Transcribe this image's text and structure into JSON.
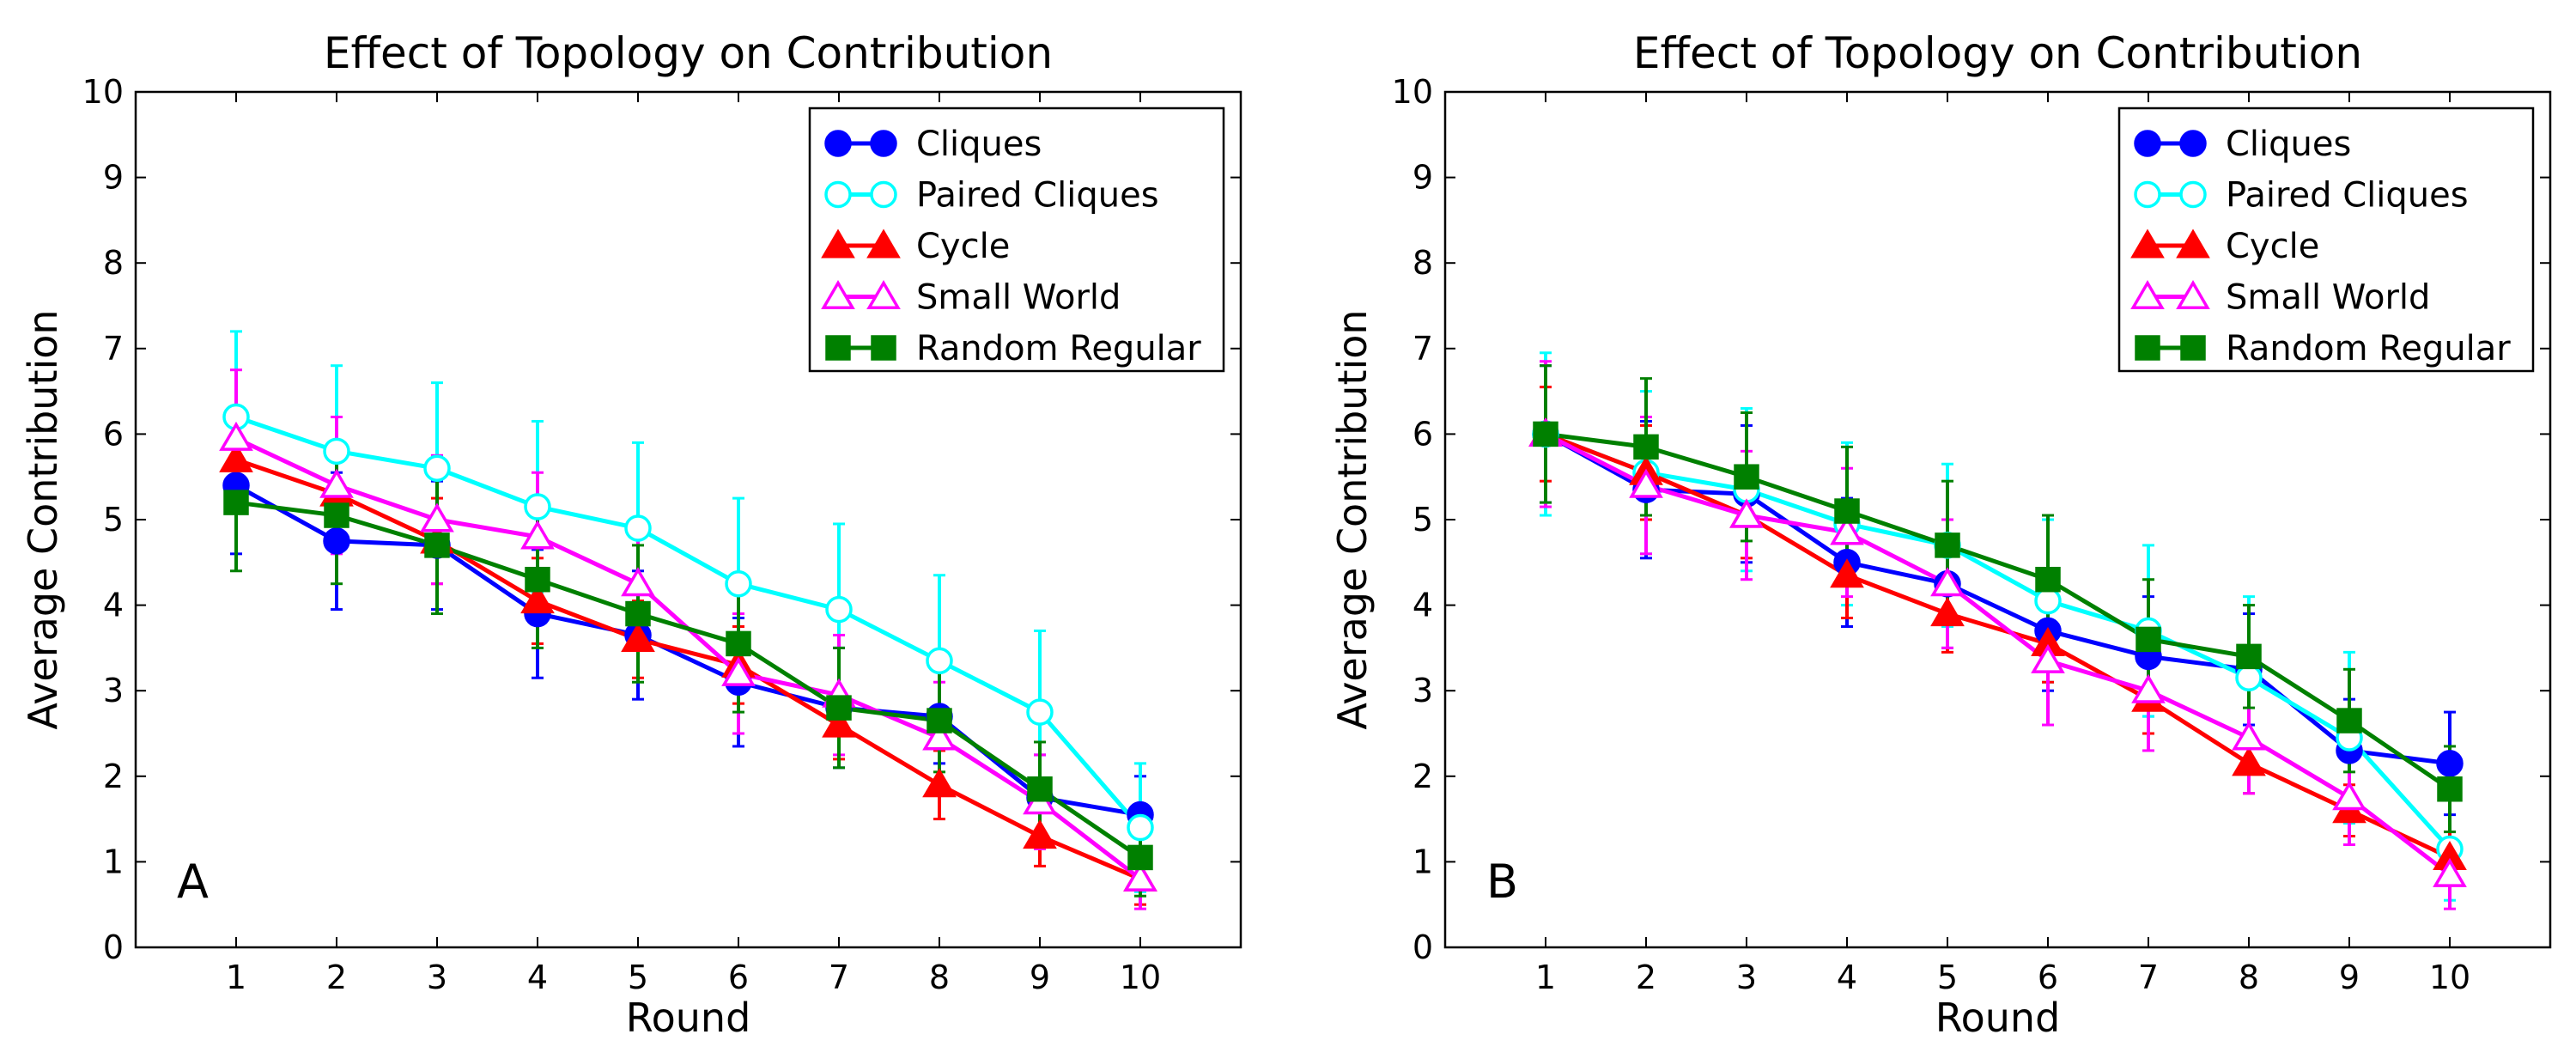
{
  "chart_data": [
    {
      "type": "line",
      "panel_label": "A",
      "title": "Effect of Topology on Contribution",
      "xlabel": "Round",
      "ylabel": "Average Contribution",
      "x": [
        1,
        2,
        3,
        4,
        5,
        6,
        7,
        8,
        9,
        10
      ],
      "xlim": [
        0,
        11
      ],
      "ylim": [
        0,
        10
      ],
      "xticks": [
        "1",
        "2",
        "3",
        "4",
        "5",
        "6",
        "7",
        "8",
        "9",
        "10"
      ],
      "yticks": [
        "0",
        "1",
        "2",
        "3",
        "4",
        "5",
        "6",
        "7",
        "8",
        "9",
        "10"
      ],
      "legend_position": "top-right",
      "grid": false,
      "series": [
        {
          "name": "Cliques",
          "color": "#0000ff",
          "marker": "circle-filled",
          "values": [
            5.4,
            4.75,
            4.7,
            3.9,
            3.65,
            3.1,
            2.8,
            2.7,
            1.75,
            1.55
          ],
          "errors": [
            0.8,
            0.8,
            0.75,
            0.75,
            0.75,
            0.75,
            0.7,
            0.55,
            0.5,
            0.45
          ]
        },
        {
          "name": "Paired Cliques",
          "color": "#00ffff",
          "marker": "circle-open",
          "values": [
            6.2,
            5.8,
            5.6,
            5.15,
            4.9,
            4.25,
            3.95,
            3.35,
            2.75,
            1.4
          ],
          "errors": [
            1.0,
            1.0,
            1.0,
            1.0,
            1.0,
            1.0,
            1.0,
            1.0,
            0.95,
            0.75
          ]
        },
        {
          "name": "Cycle",
          "color": "#ff0000",
          "marker": "triangle-filled",
          "values": [
            5.7,
            5.3,
            4.75,
            4.05,
            3.6,
            3.3,
            2.6,
            1.9,
            1.3,
            0.8
          ],
          "errors": [
            0.55,
            0.55,
            0.5,
            0.5,
            0.45,
            0.45,
            0.4,
            0.4,
            0.35,
            0.3
          ]
        },
        {
          "name": "Small World",
          "color": "#ff00ff",
          "marker": "triangle-open",
          "values": [
            5.95,
            5.4,
            5.0,
            4.8,
            4.25,
            3.2,
            2.95,
            2.45,
            1.7,
            0.8
          ],
          "errors": [
            0.8,
            0.8,
            0.75,
            0.75,
            0.7,
            0.7,
            0.7,
            0.65,
            0.55,
            0.35
          ]
        },
        {
          "name": "Random Regular",
          "color": "#008000",
          "marker": "square-filled",
          "values": [
            5.2,
            5.05,
            4.7,
            4.3,
            3.9,
            3.55,
            2.8,
            2.65,
            1.85,
            1.05
          ],
          "errors": [
            0.8,
            0.8,
            0.8,
            0.8,
            0.8,
            0.8,
            0.7,
            0.6,
            0.55,
            0.45
          ]
        }
      ]
    },
    {
      "type": "line",
      "panel_label": "B",
      "title": "Effect of Topology on Contribution",
      "xlabel": "Round",
      "ylabel": "Average Contribution",
      "x": [
        1,
        2,
        3,
        4,
        5,
        6,
        7,
        8,
        9,
        10
      ],
      "xlim": [
        0,
        11
      ],
      "ylim": [
        0,
        10
      ],
      "xticks": [
        "1",
        "2",
        "3",
        "4",
        "5",
        "6",
        "7",
        "8",
        "9",
        "10"
      ],
      "yticks": [
        "0",
        "1",
        "2",
        "3",
        "4",
        "5",
        "6",
        "7",
        "8",
        "9",
        "10"
      ],
      "legend_position": "top-right",
      "grid": false,
      "series": [
        {
          "name": "Cliques",
          "color": "#0000ff",
          "marker": "circle-filled",
          "values": [
            6.0,
            5.35,
            5.3,
            4.5,
            4.25,
            3.7,
            3.4,
            3.25,
            2.3,
            2.15
          ],
          "errors": [
            0.8,
            0.8,
            0.8,
            0.75,
            0.75,
            0.7,
            0.7,
            0.65,
            0.6,
            0.6
          ]
        },
        {
          "name": "Paired Cliques",
          "color": "#00ffff",
          "marker": "circle-open",
          "values": [
            6.0,
            5.55,
            5.35,
            4.95,
            4.7,
            4.05,
            3.7,
            3.15,
            2.45,
            1.15
          ],
          "errors": [
            0.95,
            0.95,
            0.95,
            0.95,
            0.95,
            0.95,
            1.0,
            0.95,
            1.0,
            0.6
          ]
        },
        {
          "name": "Cycle",
          "color": "#ff0000",
          "marker": "triangle-filled",
          "values": [
            6.0,
            5.55,
            5.05,
            4.35,
            3.9,
            3.55,
            2.9,
            2.15,
            1.6,
            1.05
          ],
          "errors": [
            0.55,
            0.55,
            0.5,
            0.5,
            0.45,
            0.45,
            0.4,
            0.35,
            0.3,
            0.3
          ]
        },
        {
          "name": "Small World",
          "color": "#ff00ff",
          "marker": "triangle-open",
          "values": [
            6.0,
            5.4,
            5.05,
            4.85,
            4.25,
            3.35,
            3.0,
            2.45,
            1.75,
            0.85
          ],
          "errors": [
            0.85,
            0.8,
            0.75,
            0.75,
            0.75,
            0.75,
            0.7,
            0.65,
            0.55,
            0.4
          ]
        },
        {
          "name": "Random Regular",
          "color": "#008000",
          "marker": "square-filled",
          "values": [
            6.0,
            5.85,
            5.5,
            5.1,
            4.7,
            4.3,
            3.6,
            3.4,
            2.65,
            1.85
          ],
          "errors": [
            0.8,
            0.8,
            0.75,
            0.75,
            0.75,
            0.75,
            0.7,
            0.6,
            0.6,
            0.5
          ]
        }
      ]
    }
  ]
}
